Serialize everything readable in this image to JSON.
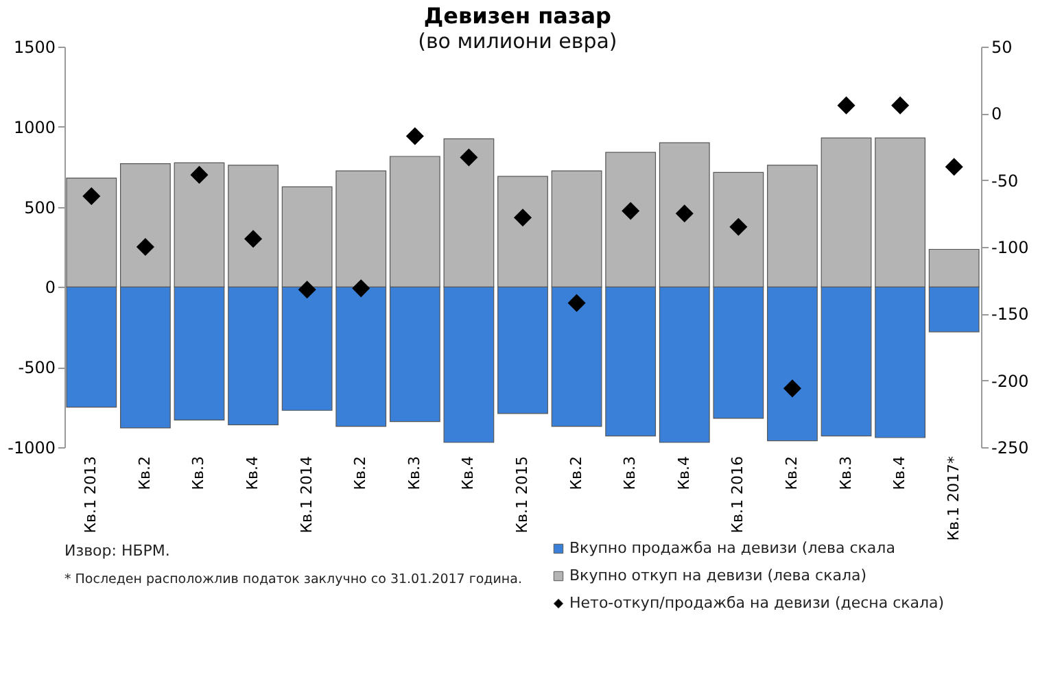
{
  "chart_data": {
    "type": "bar",
    "stacked": true,
    "title": "Девизен пазар",
    "subtitle": "(во милиони евра)",
    "categories": [
      "Кв.1 2013",
      "Кв.2",
      "Кв.3",
      "Кв.4",
      "Кв.1 2014",
      "Кв.2",
      "Кв.3",
      "Кв.4",
      "Кв.1 2015",
      "Кв.2",
      "Кв.3",
      "Кв.4",
      "Кв.1 2016",
      "Кв.2",
      "Кв.3",
      "Кв.4",
      "Кв.1 2017*"
    ],
    "series": [
      {
        "name": "Вкупно продажба на девизи (лева скала",
        "color": "#3a80d8",
        "values": [
          -750,
          -880,
          -830,
          -860,
          -770,
          -870,
          -840,
          -970,
          -790,
          -870,
          -930,
          -970,
          -820,
          -960,
          -930,
          -940,
          -280
        ]
      },
      {
        "name": "Вкупно откуп  на девизи (лева скала)",
        "color": "#b4b4b4",
        "values": [
          680,
          770,
          775,
          760,
          625,
          725,
          815,
          925,
          690,
          725,
          840,
          900,
          715,
          760,
          930,
          930,
          235
        ]
      },
      {
        "name": "Нето-откуп/продажба на девизи (десна скала)",
        "color": "#000000",
        "type": "scatter",
        "axis": "y2",
        "marker": "diamond",
        "values": [
          -62,
          -100,
          -46,
          -94,
          -132,
          -131,
          -17,
          -33,
          -78,
          -142,
          -73,
          -75,
          -85,
          -206,
          6,
          6,
          -40
        ]
      }
    ],
    "ylim": [
      -1000,
      1500
    ],
    "yticks": [
      -1000,
      -500,
      0,
      500,
      1000,
      1500
    ],
    "y2lim": [
      -250,
      50
    ],
    "y2ticks": [
      -250,
      -200,
      -150,
      -100,
      -50,
      0,
      50
    ],
    "grid": false,
    "legend": "bottom right",
    "annotations": [
      "Извор: НБРМ.",
      "* Последен расположлив податок заклучно со 31.01.2017 година."
    ]
  }
}
